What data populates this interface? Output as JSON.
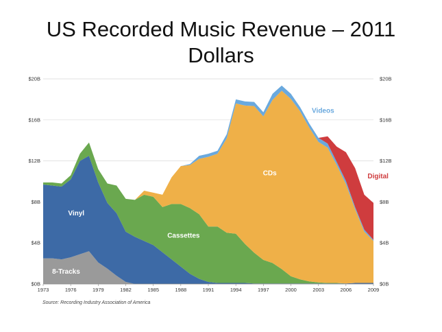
{
  "title_line1": "US Recorded Music Revenue – 2011",
  "title_line2": "Dollars",
  "source": "Source: Recording Industry Association of America",
  "colors": {
    "8-Tracks": "#9a9a9a",
    "Vinyl": "#3d6aa6",
    "Cassettes": "#6aa84f",
    "CDs": "#efb048",
    "Videos": "#6aa9de",
    "Digital": "#cf3c3e",
    "gridline": "#d9d9d9",
    "axis": "#888888"
  },
  "chart_data": {
    "type": "area",
    "stacked": true,
    "title": "US Recorded Music Revenue – 2011 Dollars",
    "ylim": [
      0,
      20
    ],
    "y_ticks": [
      "$0B",
      "$4B",
      "$8B",
      "$12B",
      "$16B",
      "$20B"
    ],
    "y_tick_values": [
      0,
      4,
      8,
      12,
      16,
      20
    ],
    "x_ticks": [
      "1973",
      "1976",
      "1979",
      "1982",
      "1985",
      "1988",
      "1991",
      "1994",
      "1997",
      "2000",
      "2003",
      "2006",
      "2009"
    ],
    "x": [
      1973,
      1974,
      1975,
      1976,
      1977,
      1978,
      1979,
      1980,
      1981,
      1982,
      1983,
      1984,
      1985,
      1986,
      1987,
      1988,
      1989,
      1990,
      1991,
      1992,
      1993,
      1994,
      1995,
      1996,
      1997,
      1998,
      1999,
      2000,
      2001,
      2002,
      2003,
      2004,
      2005,
      2006,
      2007,
      2008,
      2009
    ],
    "series": [
      {
        "name": "8-Tracks",
        "values": [
          2.5,
          2.5,
          2.4,
          2.6,
          2.9,
          3.2,
          2.1,
          1.5,
          0.8,
          0.2,
          0,
          0,
          0,
          0,
          0,
          0,
          0,
          0,
          0,
          0,
          0,
          0,
          0,
          0,
          0,
          0,
          0,
          0,
          0,
          0,
          0,
          0,
          0,
          0,
          0,
          0,
          0
        ]
      },
      {
        "name": "Vinyl",
        "values": [
          7.2,
          7.1,
          7.1,
          7.6,
          9.1,
          9.3,
          7.8,
          6.4,
          6.1,
          4.9,
          4.6,
          4.2,
          3.8,
          3.1,
          2.4,
          1.7,
          1.0,
          0.5,
          0.2,
          0.1,
          0.1,
          0.1,
          0.1,
          0.05,
          0.05,
          0.05,
          0.05,
          0.05,
          0.05,
          0.05,
          0.05,
          0.05,
          0.05,
          0.05,
          0.1,
          0.1,
          0.1
        ]
      },
      {
        "name": "Cassettes",
        "values": [
          0.2,
          0.3,
          0.3,
          0.4,
          0.7,
          1.3,
          1.3,
          1.9,
          2.7,
          3.2,
          3.6,
          4.5,
          4.7,
          4.4,
          5.4,
          6.1,
          6.4,
          6.3,
          5.4,
          5.5,
          4.9,
          4.8,
          3.8,
          3.0,
          2.3,
          2.0,
          1.4,
          0.7,
          0.4,
          0.2,
          0.1,
          0.05,
          0.05,
          0,
          0,
          0,
          0
        ]
      },
      {
        "name": "CDs",
        "values": [
          0,
          0,
          0,
          0,
          0,
          0,
          0,
          0,
          0,
          0,
          0,
          0.4,
          0.4,
          1.2,
          2.6,
          3.7,
          4.2,
          5.4,
          6.8,
          7.1,
          9.2,
          12.7,
          13.5,
          14.3,
          14.0,
          15.9,
          17.4,
          17.3,
          16.4,
          15.0,
          13.7,
          13.2,
          11.5,
          9.7,
          7.2,
          5.0,
          4.1
        ]
      },
      {
        "name": "Videos",
        "values": [
          0,
          0,
          0,
          0,
          0,
          0,
          0,
          0,
          0,
          0,
          0,
          0,
          0,
          0,
          0,
          0,
          0.1,
          0.3,
          0.3,
          0.3,
          0.4,
          0.4,
          0.4,
          0.4,
          0.4,
          0.6,
          0.5,
          0.5,
          0.4,
          0.4,
          0.4,
          0.4,
          0.3,
          0.3,
          0.2,
          0.2,
          0.1
        ]
      },
      {
        "name": "Digital",
        "values": [
          0,
          0,
          0,
          0,
          0,
          0,
          0,
          0,
          0,
          0,
          0,
          0,
          0,
          0,
          0,
          0,
          0,
          0,
          0,
          0,
          0,
          0,
          0,
          0,
          0,
          0,
          0,
          0,
          0,
          0,
          0,
          0.7,
          1.5,
          2.8,
          3.8,
          3.4,
          3.6
        ]
      }
    ],
    "series_labels": [
      {
        "name": "8-Tracks",
        "text": "8-Tracks",
        "at_x": 1975.5,
        "at_y": 1.0,
        "color": "#ffffff"
      },
      {
        "name": "Vinyl",
        "text": "Vinyl",
        "at_x": 1976.6,
        "at_y": 6.7,
        "color": "#ffffff"
      },
      {
        "name": "Cassettes",
        "text": "Cassettes",
        "at_x": 1988.3,
        "at_y": 4.5,
        "color": "#ffffff"
      },
      {
        "name": "CDs",
        "text": "CDs",
        "at_x": 1997.7,
        "at_y": 10.6,
        "color": "#ffffff"
      },
      {
        "name": "Videos",
        "text": "Videos",
        "at_x": 2003.5,
        "at_y": 16.7,
        "color": "#6aa9de"
      },
      {
        "name": "Digital",
        "text": "Digital",
        "at_x": 2009.5,
        "at_y": 10.3,
        "color": "#cf3c3e"
      }
    ]
  }
}
